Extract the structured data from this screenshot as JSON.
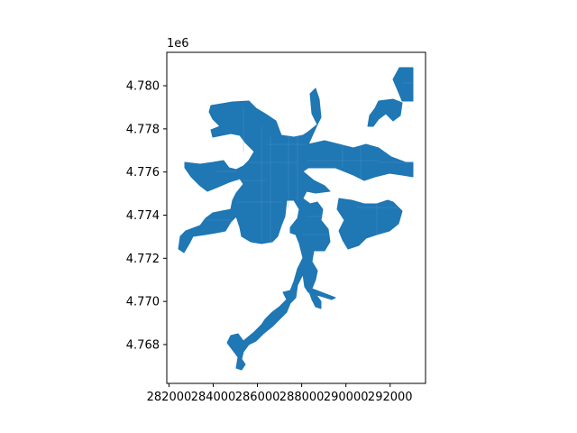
{
  "plot": {
    "type": "geographic-polygon-plot",
    "fill_color": "#1f77b4",
    "internal_line_color": "#5a9bd4",
    "axis_color": "#000000",
    "grid": false,
    "x_axis": {
      "range": [
        281900,
        293600
      ],
      "ticks": [
        282000,
        284000,
        286000,
        288000,
        290000,
        292000
      ],
      "tick_labels": [
        "282000",
        "284000",
        "286000",
        "288000",
        "290000",
        "292000"
      ]
    },
    "y_axis": {
      "range": [
        4766200,
        4781550
      ],
      "offset_label": "1e6",
      "ticks": [
        4768000,
        4770000,
        4772000,
        4774000,
        4776000,
        4778000,
        4780000
      ],
      "tick_labels": [
        "4.768",
        "4.770",
        "4.772",
        "4.774",
        "4.776",
        "4.778",
        "4.780"
      ]
    }
  }
}
